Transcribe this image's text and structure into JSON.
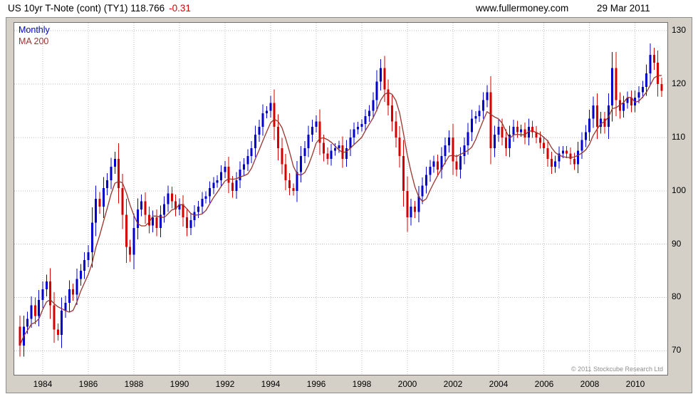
{
  "header": {
    "title": "US 10yr T-Note (cont) (TY1) 118.766",
    "change": "-0.31",
    "website": "www.fullermoney.com",
    "date": "29 Mar 2011"
  },
  "legend": {
    "series_label": "Monthly",
    "ma_label": "MA 200"
  },
  "footer": {
    "copyright": "© 2011 Stockcube Research Ltd"
  },
  "colors": {
    "up": "#0000cc",
    "down": "#d40000",
    "ma": "#9a342c",
    "grid": "#bdbdbd",
    "frame": "#6e6e6e",
    "panel_bg": "#d4d0c8"
  },
  "chart_data": {
    "type": "candlestick",
    "title": "US 10yr T-Note (cont) (TY1)",
    "instrument": "US 10yr T-Note (cont) (TY1)",
    "interval_label": "Monthly",
    "last_price": 118.766,
    "change": -0.31,
    "x_start_year": 1983.0,
    "x_step_years": 0.1666667,
    "closes": [
      71.0,
      74.5,
      76.0,
      78.5,
      76.5,
      79.5,
      81.5,
      83.0,
      78.5,
      74.0,
      73.0,
      77.5,
      79.0,
      81.5,
      80.5,
      83.5,
      85.0,
      87.0,
      88.5,
      94.0,
      98.5,
      97.0,
      100.5,
      102.0,
      104.5,
      106.0,
      100.5,
      95.5,
      89.5,
      88.0,
      93.0,
      96.5,
      98.0,
      95.5,
      93.5,
      95.0,
      93.0,
      95.5,
      97.5,
      99.5,
      98.0,
      96.5,
      97.5,
      95.0,
      93.0,
      94.5,
      96.0,
      97.0,
      98.5,
      99.0,
      100.5,
      101.5,
      102.0,
      103.5,
      104.5,
      101.5,
      100.0,
      102.0,
      104.0,
      105.0,
      106.5,
      108.0,
      110.5,
      112.0,
      114.5,
      115.0,
      116.5,
      112.0,
      108.0,
      105.0,
      102.0,
      100.5,
      100.0,
      103.5,
      106.5,
      108.0,
      110.5,
      112.0,
      113.0,
      109.0,
      107.0,
      106.0,
      107.5,
      108.0,
      108.5,
      106.0,
      108.0,
      110.0,
      111.5,
      112.0,
      112.5,
      114.0,
      115.0,
      117.0,
      120.5,
      123.0,
      119.0,
      116.0,
      113.0,
      110.0,
      106.5,
      100.0,
      95.0,
      97.0,
      96.0,
      99.0,
      101.0,
      103.0,
      104.5,
      105.5,
      104.0,
      106.5,
      108.5,
      110.0,
      105.5,
      104.0,
      106.5,
      108.5,
      111.0,
      113.5,
      114.0,
      115.0,
      117.0,
      118.5,
      108.0,
      110.5,
      112.0,
      110.0,
      108.0,
      110.5,
      112.0,
      111.0,
      111.5,
      110.0,
      112.0,
      111.0,
      110.0,
      109.0,
      108.0,
      106.0,
      104.5,
      105.5,
      107.0,
      107.5,
      107.0,
      106.0,
      105.0,
      107.5,
      109.5,
      111.0,
      113.5,
      116.0,
      112.0,
      113.5,
      112.0,
      116.0,
      123.0,
      117.0,
      115.0,
      116.5,
      117.5,
      116.0,
      117.5,
      118.5,
      119.5,
      122.0,
      125.5,
      124.0,
      120.0,
      118.766
    ],
    "ma_window_bars": 6,
    "ma_label": "MA 200",
    "ylim": [
      65.5,
      131.5
    ],
    "yticks": [
      70,
      80,
      90,
      100,
      110,
      120,
      130
    ],
    "xticks": [
      1984,
      1986,
      1988,
      1990,
      1992,
      1994,
      1996,
      1998,
      2000,
      2002,
      2004,
      2006,
      2008,
      2010
    ],
    "legend_position": "top-left",
    "grid": "dotted"
  }
}
